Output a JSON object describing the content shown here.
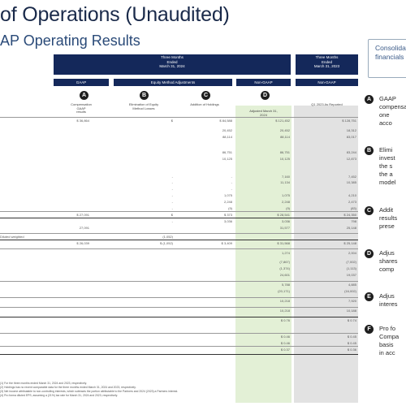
{
  "header": {
    "title": "of Operations (Unaudited)",
    "subtitle": "AP Operating Results"
  },
  "group_headers": {
    "main": [
      "Three Months",
      "Ended",
      "March 31, 2024"
    ],
    "right": [
      "Three Months",
      "Ended",
      "March 31, 2023"
    ]
  },
  "subheaders": [
    "GAAP",
    "Equity Method Adjustments",
    "Non-GAAP",
    "Non-GAAP"
  ],
  "markers": [
    "A",
    "B",
    "C",
    "D"
  ],
  "column_headers": [
    [
      "Compensation",
      "GAAP",
      "results"
    ],
    [
      "Elimination of Equity",
      "Method Losses"
    ],
    [
      "Addition of Holdings"
    ],
    [
      "Adjusted March 31,",
      "2024"
    ],
    [
      "Q1 2023 As Reported"
    ]
  ],
  "rows": [
    {
      "label": "",
      "c1": "$   36,864",
      "c2": "$",
      "c3": "$        84,588",
      "c4": "$  121,452",
      "c5": "$   128,751"
    },
    {
      "label": "",
      "c1": "",
      "c2": "",
      "c3": "20,452",
      "c4": "20,452",
      "c5": "18,312"
    },
    {
      "label": "",
      "c1": "",
      "c2": "",
      "c3": "88,114",
      "c4": "88,114",
      "c5": "83,017"
    },
    {
      "label": "",
      "c1": "",
      "c2": "",
      "c3": "",
      "c4": "",
      "c5": ""
    },
    {
      "label": "",
      "c1": "",
      "c2": "",
      "c3": "86,751",
      "c4": "86,751",
      "c5": "83,244"
    },
    {
      "label": "",
      "c1": "",
      "c2": "",
      "c3": "10,125",
      "c4": "10,125",
      "c5": "12,873"
    },
    {
      "label": "",
      "c1": "",
      "c2": "",
      "c3": "",
      "c4": "",
      "c5": ""
    },
    {
      "label": "",
      "c1": "",
      "c2": "-",
      "c3": "-",
      "c4": "7,160",
      "c5": "7,452"
    },
    {
      "label": "",
      "c1": "",
      "c2": "-",
      "c3": "-",
      "c4": "11,134",
      "c5": "10,385"
    },
    {
      "label": "",
      "c1": "",
      "c2": "-",
      "c3": "-",
      "c4": "",
      "c5": ""
    },
    {
      "label": "",
      "c1": "",
      "c2": "-",
      "c3": "1,075",
      "c4": "1,075",
      "c5": "4,210"
    },
    {
      "label": "",
      "c1": "",
      "c2": "-",
      "c3": "2,248",
      "c4": "2,248",
      "c5": "2,473"
    },
    {
      "label": "",
      "c1": "",
      "c2": "-",
      "c3": "(9)",
      "c4": "(9)",
      "c5": "(83)"
    },
    {
      "label": "",
      "c1": "$   27,091",
      "c2": "$",
      "c3": "$          373",
      "c4": "$   28,541",
      "c5": "$    24,350"
    },
    {
      "label": "",
      "c1": "",
      "c2": "-",
      "c3": "3,036",
      "c4": "3,036",
      "c5": "798"
    },
    {
      "label": "",
      "c1": "27,091",
      "c2": "",
      "c3": "",
      "c4": "31,577",
      "c5": "25,148"
    },
    {
      "label": "Diluted weighted",
      "c1": "",
      "c2": "(1,052)",
      "c3": "",
      "c4": "",
      "c5": ""
    },
    {
      "label": "",
      "c1": "$   26,039",
      "c2": "$  (1,052)",
      "c3": "$          3,409",
      "c4": "$   31,568",
      "c5": "$    25,148"
    },
    {
      "label": "",
      "c1": "",
      "c2": "",
      "c3": "",
      "c4": "1,274",
      "c5": "2,004"
    },
    {
      "label": "",
      "c1": "",
      "c2": "",
      "c3": "",
      "c4": "(7,867)",
      "c5": "(7,002)"
    },
    {
      "label": "",
      "c1": "",
      "c2": "",
      "c3": "",
      "c4": "(1,374)",
      "c5": "(1,113)"
    },
    {
      "label": "",
      "c1": "",
      "c2": "",
      "c3": "",
      "c4": "24,601",
      "c5": "19,037"
    },
    {
      "label": "",
      "c1": "",
      "c2": "",
      "c3": "",
      "c4": "5,788",
      "c5": "4,885"
    },
    {
      "label": "",
      "c1": "",
      "c2": "",
      "c3": "",
      "c4": "(20,171)",
      "c5": "(16,002)"
    },
    {
      "label": "",
      "c1": "",
      "c2": "",
      "c3": "",
      "c4": "10,218",
      "c5": "7,920"
    },
    {
      "label": "",
      "c1": "",
      "c2": "",
      "c3": "",
      "c4": "10,218",
      "c5": "10,188"
    },
    {
      "label": "",
      "c1": "",
      "c2": "",
      "c3": "",
      "c4": "$    0.76",
      "c5": "$      0.74"
    },
    {
      "label": "",
      "c1": "",
      "c2": "",
      "c3": "",
      "c4": "",
      "c5": ""
    },
    {
      "label": "",
      "c1": "",
      "c2": "",
      "c3": "",
      "c4": "$    0.46",
      "c5": "$      0.45"
    },
    {
      "label": "",
      "c1": "",
      "c2": "",
      "c3": "",
      "c4": "$    0.46",
      "c5": "$      0.45"
    },
    {
      "label": "",
      "c1": "",
      "c2": "",
      "c3": "",
      "c4": "$    0.37",
      "c5": "$      0.36"
    }
  ],
  "callout": [
    "Consolidated",
    "financials"
  ],
  "side_notes": [
    {
      "marker": "A",
      "lines": [
        "GAAP",
        "compensation",
        "one ",
        "acco"
      ]
    },
    {
      "marker": "B",
      "lines": [
        "Elimi",
        "invest",
        "the s",
        "the a",
        "model"
      ]
    },
    {
      "marker": "C",
      "lines": [
        "Addit",
        "results",
        "prese"
      ]
    },
    {
      "marker": "D",
      "lines": [
        "Adjus",
        "shares",
        "comp"
      ]
    },
    {
      "marker": "E",
      "lines": [
        "Adjus",
        "interes"
      ]
    },
    {
      "marker": "F",
      "lines": [
        "Pro fo",
        "Compa",
        "basis ",
        "in acc"
      ]
    }
  ],
  "footnotes": [
    "(1) For the three months ended March 31, 2024 and 2023, respectively.",
    "(2) Holdings has no recent comparable data for the three months ended March 31, 2024 and 2023, respectively.",
    "(3) Net income attributable to non-controlling interests, which subtracts the portion attributable to the Partners and 2024 (2023) a Partners interest.",
    "(4) Pro forma diluted EPS, assuming a (21%) tax rate for March 31, 2024 and 2023, respectively."
  ]
}
